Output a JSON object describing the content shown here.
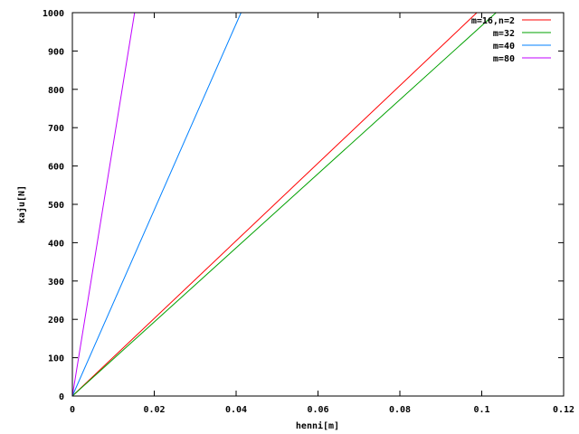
{
  "chart_data": {
    "type": "line",
    "title": "",
    "xlabel": "henni[m]",
    "ylabel": "kaju[N]",
    "xlim": [
      0,
      0.12
    ],
    "ylim": [
      0,
      1000
    ],
    "x_ticks": [
      0,
      0.02,
      0.04,
      0.06,
      0.08,
      0.1,
      0.12
    ],
    "x_tick_labels": [
      "0",
      "0.02",
      "0.04",
      "0.06",
      "0.08",
      "0.1",
      "0.12"
    ],
    "y_ticks": [
      0,
      100,
      200,
      300,
      400,
      500,
      600,
      700,
      800,
      900,
      1000
    ],
    "y_tick_labels": [
      "0",
      "100",
      "200",
      "300",
      "400",
      "500",
      "600",
      "700",
      "800",
      "900",
      "1000"
    ],
    "grid": false,
    "legend_position": "top-right",
    "series": [
      {
        "name": "m=16,n=2",
        "color": "#ff0000",
        "x": [
          0,
          0.0988
        ],
        "y": [
          0,
          1000
        ]
      },
      {
        "name": "m=32",
        "color": "#00a000",
        "x": [
          0,
          0.1035
        ],
        "y": [
          0,
          1000
        ]
      },
      {
        "name": "m=40",
        "color": "#0080ff",
        "x": [
          0,
          0.0412
        ],
        "y": [
          0,
          1000
        ]
      },
      {
        "name": "m=80",
        "color": "#c000ff",
        "x": [
          0,
          0.0152
        ],
        "y": [
          0,
          1000
        ]
      }
    ]
  }
}
